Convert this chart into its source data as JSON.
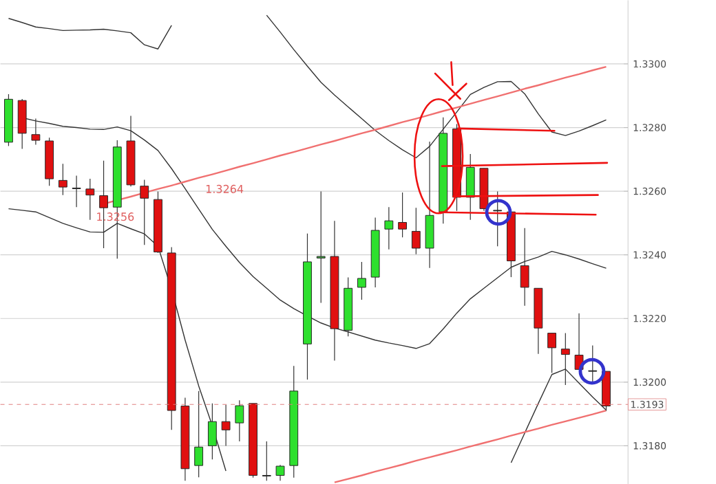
{
  "chart_data": {
    "type": "candlestick",
    "categories": [
      null,
      null,
      null,
      null,
      null,
      null,
      null,
      null,
      null,
      null,
      null,
      null,
      null,
      null,
      null,
      null,
      null,
      null,
      null,
      null,
      null,
      null,
      null,
      null,
      null,
      null,
      null,
      null,
      null,
      null,
      null,
      null,
      null,
      null,
      null,
      null,
      null,
      null,
      null,
      null,
      null,
      null,
      null,
      null,
      null
    ],
    "ohlc": [
      [
        1.32754,
        1.32905,
        1.32742,
        1.32889
      ],
      [
        1.32885,
        1.3289,
        1.32733,
        1.32782
      ],
      [
        1.32778,
        1.32828,
        1.32746,
        1.3276
      ],
      [
        1.32758,
        1.32768,
        1.32617,
        1.32639
      ],
      [
        1.32634,
        1.32686,
        1.32588,
        1.32613
      ],
      [
        1.3261,
        1.32649,
        1.3255,
        1.32608
      ],
      [
        1.32607,
        1.32639,
        1.3251,
        1.32588
      ],
      [
        1.32586,
        1.32696,
        1.32421,
        1.32548
      ],
      [
        1.3255,
        1.3276,
        1.32388,
        1.32739
      ],
      [
        1.32758,
        1.32837,
        1.32615,
        1.3262
      ],
      [
        1.32616,
        1.32636,
        1.32431,
        1.32578
      ],
      [
        1.32574,
        1.32599,
        1.32406,
        1.32409
      ],
      [
        1.32406,
        1.32424,
        1.3185,
        1.31911
      ],
      [
        1.31925,
        1.31951,
        1.3169,
        1.31728
      ],
      [
        1.31738,
        1.31972,
        1.31701,
        1.31796
      ],
      [
        1.318,
        1.31933,
        1.31757,
        1.31876
      ],
      [
        1.31876,
        1.31929,
        1.318,
        1.3185
      ],
      [
        1.31872,
        1.31943,
        1.31814,
        1.31926
      ],
      [
        1.31933,
        1.31933,
        1.317,
        1.31707
      ],
      [
        1.31707,
        1.31814,
        1.3169,
        1.31705
      ],
      [
        1.31707,
        1.3174,
        1.3169,
        1.31736
      ],
      [
        1.31738,
        1.32051,
        1.317,
        1.31972
      ],
      [
        1.3212,
        1.32467,
        1.32008,
        1.32378
      ],
      [
        1.3239,
        1.32599,
        1.32249,
        1.32395
      ],
      [
        1.32395,
        1.32507,
        1.32068,
        1.32168
      ],
      [
        1.32163,
        1.32329,
        1.32144,
        1.32295
      ],
      [
        1.32298,
        1.32378,
        1.32259,
        1.32326
      ],
      [
        1.3233,
        1.32517,
        1.32298,
        1.32477
      ],
      [
        1.32481,
        1.3255,
        1.32417,
        1.32507
      ],
      [
        1.32502,
        1.32596,
        1.32455,
        1.32481
      ],
      [
        1.32474,
        1.32548,
        1.32402,
        1.32421
      ],
      [
        1.32421,
        1.32756,
        1.32359,
        1.32524
      ],
      [
        1.32535,
        1.32832,
        1.32498,
        1.32782
      ],
      [
        1.32796,
        1.32811,
        1.32538,
        1.32581
      ],
      [
        1.32581,
        1.32717,
        1.3251,
        1.32675
      ],
      [
        1.32672,
        1.32672,
        1.32538,
        1.32545
      ],
      [
        1.3254,
        1.32599,
        1.32427,
        1.32538
      ],
      [
        1.32535,
        1.32535,
        1.3233,
        1.32381
      ],
      [
        1.32366,
        1.32484,
        1.3224,
        1.32298
      ],
      [
        1.32295,
        1.32295,
        1.32089,
        1.3217
      ],
      [
        1.32154,
        1.32154,
        1.32029,
        1.32108
      ],
      [
        1.32104,
        1.32154,
        1.31991,
        1.32087
      ],
      [
        1.32085,
        1.32216,
        1.3204,
        1.3204
      ],
      [
        1.32036,
        1.32115,
        1.32001,
        1.32034
      ],
      [
        1.32034,
        1.32034,
        1.3191,
        1.31925
      ]
    ],
    "colors": [
      "#2ee02e",
      "#e01010",
      "#e01010",
      "#e01010",
      "#e01010",
      "#222222",
      "#e01010",
      "#e01010",
      "#2ee02e",
      "#e01010",
      "#e01010",
      "#e01010",
      "#e01010",
      "#e01010",
      "#2ee02e",
      "#2ee02e",
      "#e01010",
      "#2ee02e",
      "#e01010",
      "#222222",
      "#2ee02e",
      "#2ee02e",
      "#2ee02e",
      "#44aa44",
      "#e01010",
      "#2ee02e",
      "#2ee02e",
      "#2ee02e",
      "#2ee02e",
      "#e01010",
      "#e01010",
      "#2ee02e",
      "#2ee02e",
      "#e01010",
      "#2ee02e",
      "#e01010",
      "#222222",
      "#e01010",
      "#e01010",
      "#e01010",
      "#e01010",
      "#e01010",
      "#e01010",
      "#222222",
      "#e01010"
    ],
    "series": [
      {
        "type": "line",
        "color": "#333333",
        "values": [
          1.33143,
          1.3313,
          1.33116,
          1.33111,
          1.33105,
          1.33106,
          1.33107,
          1.33109,
          1.33104,
          1.33098,
          1.3306,
          1.33047,
          1.33121,
          null,
          null,
          null,
          null,
          null,
          null,
          1.33153,
          1.331,
          1.33045,
          1.32993,
          1.32942,
          1.32902,
          1.32865,
          1.32828,
          1.32791,
          1.32759,
          1.3273,
          1.32705,
          1.32741,
          1.32795,
          1.32849,
          1.32904,
          1.32926,
          1.32944,
          1.32945,
          1.32906,
          1.32843,
          1.32786,
          1.32775,
          1.32789,
          1.32806,
          1.32824
        ]
      },
      {
        "type": "line",
        "color": "#333333",
        "values": [
          null,
          1.32831,
          1.32821,
          1.32813,
          1.32804,
          1.328,
          1.32795,
          1.32794,
          1.32802,
          1.3279,
          1.32761,
          1.32728,
          1.32671,
          1.32608,
          1.32544,
          1.3248,
          1.32427,
          1.32376,
          1.32332,
          1.32295,
          1.32258,
          1.32231,
          1.32208,
          1.32186,
          1.3217,
          1.32158,
          1.32145,
          1.32132,
          1.32123,
          1.32115,
          1.32106,
          1.32121,
          1.32167,
          1.32217,
          1.32262,
          1.32295,
          1.32328,
          1.32361,
          1.32379,
          1.32393,
          1.32411,
          1.324,
          1.32387,
          1.32372,
          1.32358
        ]
      },
      {
        "type": "line",
        "color": "#333333",
        "values": [
          1.32545,
          1.3254,
          1.32535,
          1.32517,
          1.32499,
          1.32485,
          1.32472,
          1.32471,
          1.32499,
          1.32482,
          1.32466,
          1.32427,
          1.32292,
          1.32132,
          1.31988,
          1.31863,
          1.31721,
          null,
          null,
          null,
          null,
          null,
          null,
          null,
          null,
          null,
          null,
          null,
          null,
          null,
          null,
          null,
          null,
          null,
          null,
          null,
          null,
          1.31747,
          1.3184,
          1.31933,
          1.32024,
          1.32041,
          1.31997,
          1.31953,
          1.31912
        ]
      },
      {
        "type": "line",
        "color": "#f07070",
        "values": [
          null,
          null,
          null,
          null,
          null,
          null,
          null,
          1.3256,
          1.32572,
          1.32583,
          1.32595,
          1.32607,
          1.32618,
          1.3263,
          1.32642,
          1.32653,
          1.32665,
          1.32677,
          1.32688,
          1.327,
          1.32712,
          1.32723,
          1.32735,
          1.32747,
          1.32758,
          1.3277,
          1.32782,
          1.32793,
          1.32805,
          1.32817,
          1.32828,
          1.3284,
          1.32852,
          1.32863,
          1.32875,
          1.32887,
          1.32898,
          1.3291,
          1.32922,
          1.32933,
          1.32945,
          1.32957,
          1.32968,
          1.3298,
          1.32991
        ]
      },
      {
        "type": "line",
        "color": "#f07070",
        "values": [
          null,
          null,
          null,
          null,
          null,
          null,
          null,
          null,
          null,
          null,
          null,
          null,
          null,
          null,
          null,
          null,
          null,
          null,
          null,
          null,
          null,
          null,
          null,
          null,
          1.31685,
          1.31696,
          1.31707,
          1.31719,
          1.3173,
          1.31741,
          1.31753,
          1.31764,
          1.31775,
          1.31786,
          1.31798,
          1.31809,
          1.3182,
          1.31832,
          1.31843,
          1.31854,
          1.31866,
          1.31877,
          1.31888,
          1.31899,
          1.31911
        ]
      }
    ],
    "ylim": [
      1.3168,
      1.332
    ],
    "yticks": [
      {
        "value": 1.318,
        "label": "1.3180"
      },
      {
        "value": 1.32,
        "label": "1.3200"
      },
      {
        "value": 1.322,
        "label": "1.3220"
      },
      {
        "value": 1.324,
        "label": "1.3240"
      },
      {
        "value": 1.326,
        "label": "1.3260"
      },
      {
        "value": 1.328,
        "label": "1.3280"
      },
      {
        "value": 1.33,
        "label": "1.3300"
      }
    ],
    "grid": "y",
    "tick_labels": "y",
    "ref_lines": [
      {
        "axis": "y",
        "value": 1.3193,
        "label": "1.3193",
        "color": "#e08080",
        "line_style": "dashed"
      }
    ],
    "annotations": [
      "1.3256",
      "1.3264"
    ]
  }
}
